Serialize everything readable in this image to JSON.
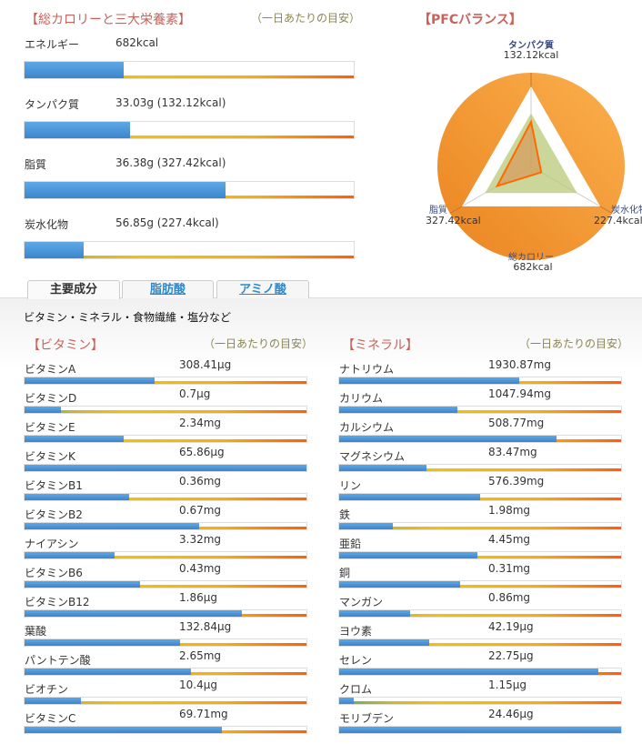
{
  "macro": {
    "title": "【総カロリーと三大栄養素】",
    "subtitle": "（一日あたりの目安）",
    "items": [
      {
        "label": "エネルギー",
        "value": "682kcal",
        "percent": 30
      },
      {
        "label": "タンパク質",
        "value": "33.03g (132.12kcal)",
        "percent": 32
      },
      {
        "label": "脂質",
        "value": "36.38g (327.42kcal)",
        "percent": 61
      },
      {
        "label": "炭水化物",
        "value": "56.85g (227.4kcal)",
        "percent": 18
      }
    ]
  },
  "pfc": {
    "title": "【PFCバランス】",
    "protein": {
      "label": "タンパク質",
      "value": "132.12kcal",
      "ratio": 0.57
    },
    "fat": {
      "label": "脂質",
      "value": "327.42kcal",
      "ratio": 0.5
    },
    "carb": {
      "label": "炭水化物",
      "value": "227.4kcal",
      "ratio": 0.15
    },
    "total": {
      "label": "総カロリー",
      "value": "682kcal"
    },
    "target_ratio": 0.68,
    "colors": {
      "circle": "#f0922e",
      "line": "#ff6a00",
      "target": "#b8c878"
    }
  },
  "tabs": [
    {
      "label": "主要成分",
      "active": true
    },
    {
      "label": "脂肪酸"
    },
    {
      "label": "アミノ酸"
    }
  ],
  "tab_description": "ビタミン・ミネラル・食物繊維・塩分など",
  "vitamins": {
    "title": "【ビタミン】",
    "subtitle": "（一日あたりの目安）",
    "items": [
      {
        "label": "ビタミンA",
        "value": "308.41μg",
        "percent": 46
      },
      {
        "label": "ビタミンD",
        "value": "0.7μg",
        "percent": 13
      },
      {
        "label": "ビタミンE",
        "value": "2.34mg",
        "percent": 35
      },
      {
        "label": "ビタミンK",
        "value": "65.86μg",
        "percent": 100
      },
      {
        "label": "ビタミンB1",
        "value": "0.36mg",
        "percent": 37
      },
      {
        "label": "ビタミンB2",
        "value": "0.67mg",
        "percent": 62
      },
      {
        "label": "ナイアシン",
        "value": "3.32mg",
        "percent": 32
      },
      {
        "label": "ビタミンB6",
        "value": "0.43mg",
        "percent": 41
      },
      {
        "label": "ビタミンB12",
        "value": "1.86μg",
        "percent": 77
      },
      {
        "label": "葉酸",
        "value": "132.84μg",
        "percent": 55
      },
      {
        "label": "パントテン酸",
        "value": "2.65mg",
        "percent": 59
      },
      {
        "label": "ビオチン",
        "value": "10.4μg",
        "percent": 20
      },
      {
        "label": "ビタミンC",
        "value": "69.71mg",
        "percent": 70
      }
    ]
  },
  "minerals": {
    "title": "【ミネラル】",
    "subtitle": "（一日あたりの目安）",
    "items": [
      {
        "label": "ナトリウム",
        "value": "1930.87mg",
        "percent": 64
      },
      {
        "label": "カリウム",
        "value": "1047.94mg",
        "percent": 42
      },
      {
        "label": "カルシウム",
        "value": "508.77mg",
        "percent": 77
      },
      {
        "label": "マグネシウム",
        "value": "83.47mg",
        "percent": 31
      },
      {
        "label": "リン",
        "value": "576.39mg",
        "percent": 50
      },
      {
        "label": "鉄",
        "value": "1.98mg",
        "percent": 19
      },
      {
        "label": "亜鉛",
        "value": "4.45mg",
        "percent": 49
      },
      {
        "label": "銅",
        "value": "0.31mg",
        "percent": 43
      },
      {
        "label": "マンガン",
        "value": "0.86mg",
        "percent": 25
      },
      {
        "label": "ヨウ素",
        "value": "42.19μg",
        "percent": 32
      },
      {
        "label": "セレン",
        "value": "22.75μg",
        "percent": 92
      },
      {
        "label": "クロム",
        "value": "1.15μg",
        "percent": 5
      },
      {
        "label": "モリブデン",
        "value": "24.46μg",
        "percent": 100
      }
    ]
  }
}
